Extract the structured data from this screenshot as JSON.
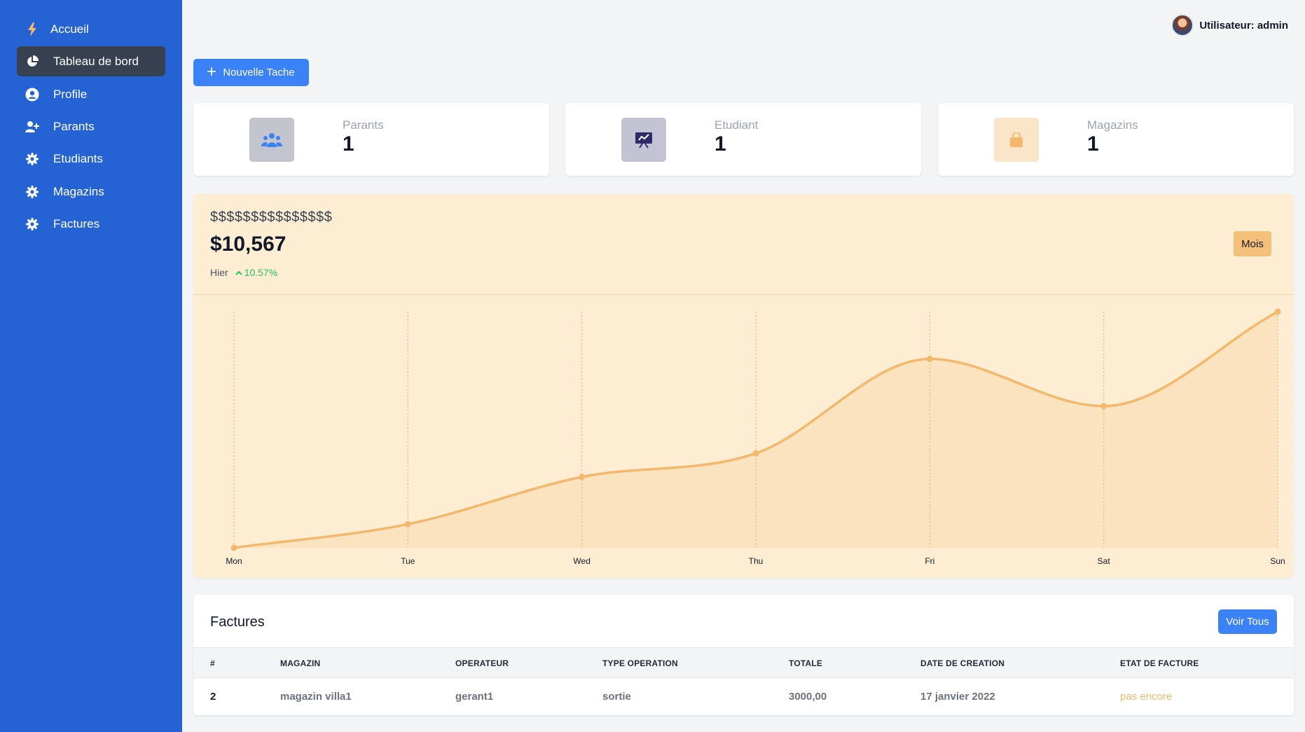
{
  "sidebar": {
    "items": [
      {
        "label": "Accueil",
        "icon": "bolt-icon"
      },
      {
        "label": "Tableau de bord",
        "icon": "pie-chart-icon",
        "active": true
      },
      {
        "label": "Profile",
        "icon": "user-circle-icon"
      },
      {
        "label": "Parants",
        "icon": "user-plus-icon"
      },
      {
        "label": "Etudiants",
        "icon": "gear-icon"
      },
      {
        "label": "Magazins",
        "icon": "gear-icon"
      },
      {
        "label": "Factures",
        "icon": "gear-icon"
      }
    ]
  },
  "header": {
    "user_label": "Utilisateur: admin"
  },
  "toolbar": {
    "new_task_label": "Nouvelle Tache"
  },
  "stats": [
    {
      "label": "Parants",
      "value": "1",
      "icon": "users-icon"
    },
    {
      "label": "Etudiant",
      "value": "1",
      "icon": "presentation-icon"
    },
    {
      "label": "Magazins",
      "value": "1",
      "icon": "shopping-bag-icon"
    }
  ],
  "revenue": {
    "heading": "$$$$$$$$$$$$$$$",
    "amount": "$10,567",
    "period_label": "Hier",
    "change": "10.57%",
    "range_button": "Mois"
  },
  "chart_data": {
    "type": "area",
    "categories": [
      "Mon",
      "Tue",
      "Wed",
      "Thu",
      "Fri",
      "Sat",
      "Sun"
    ],
    "values": [
      0,
      10,
      30,
      40,
      80,
      60,
      100
    ],
    "ylim": [
      0,
      100
    ],
    "grid": "vertical-dashed",
    "color": "#f4b86c"
  },
  "factures": {
    "title": "Factures",
    "view_all_label": "Voir Tous",
    "columns": [
      "#",
      "MAGAZIN",
      "OPERATEUR",
      "TYPE OPERATION",
      "TOTALE",
      "DATE DE CREATION",
      "ETAT DE FACTURE"
    ],
    "rows": [
      [
        "2",
        "magazin villa1",
        "gerant1",
        "sortie",
        "3000,00",
        "17 janvier 2022",
        "pas encore"
      ]
    ]
  },
  "colors": {
    "sidebar": "#2563d4",
    "accent": "#3b82f6",
    "chart_bg": "#fdedd3",
    "chart_line": "#f4b86c",
    "positive": "#22c55e",
    "pending": "#f4b56a"
  }
}
